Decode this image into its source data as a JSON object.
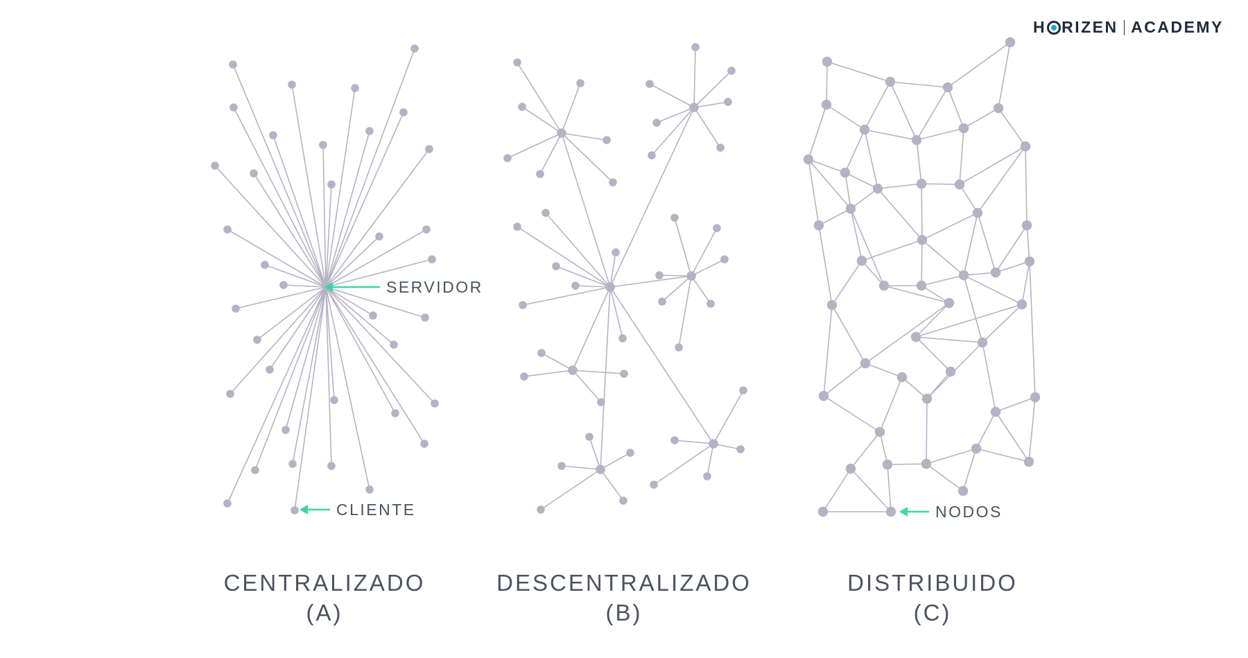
{
  "logo": {
    "part1": "H",
    "part2": "RIZEN",
    "part3": "ACADEMY"
  },
  "colors": {
    "node": "#b4b3c3",
    "accent": "#3dd6a0",
    "text": "#4d5260"
  },
  "panels": [
    {
      "title1": "CENTRALIZADO",
      "title2": "(A)"
    },
    {
      "title1": "DESCENTRALIZADO",
      "title2": "(B)"
    },
    {
      "title1": "DISTRIBUIDO",
      "title2": "(C)"
    }
  ],
  "callouts": {
    "servidor": "SERVIDOR",
    "cliente": "CLIENTE",
    "nodos": "NODOS"
  }
}
